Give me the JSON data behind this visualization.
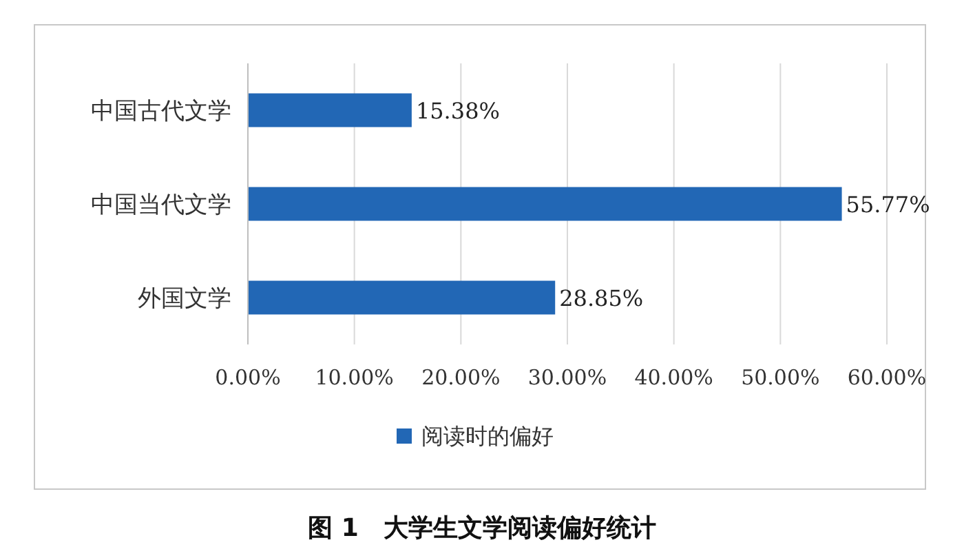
{
  "chart_data": {
    "type": "bar",
    "orientation": "horizontal",
    "title": "图 1　大学生文学阅读偏好统计",
    "categories": [
      "中国古代文学",
      "中国当代文学",
      "外国文学"
    ],
    "series": [
      {
        "name": "阅读时的偏好",
        "color": "#2267b5",
        "values": [
          15.38,
          55.77,
          28.85
        ],
        "value_labels": [
          "15.38%",
          "55.77%",
          "28.85%"
        ]
      }
    ],
    "xlim": [
      0,
      60
    ],
    "xticks": [
      {
        "value": 0,
        "label": "0.00%"
      },
      {
        "value": 10,
        "label": "10.00%"
      },
      {
        "value": 20,
        "label": "20.00%"
      },
      {
        "value": 30,
        "label": "30.00%"
      },
      {
        "value": 40,
        "label": "40.00%"
      },
      {
        "value": 50,
        "label": "50.00%"
      },
      {
        "value": 60,
        "label": "60.00%"
      }
    ],
    "grid": "x",
    "legend": "bottom"
  }
}
